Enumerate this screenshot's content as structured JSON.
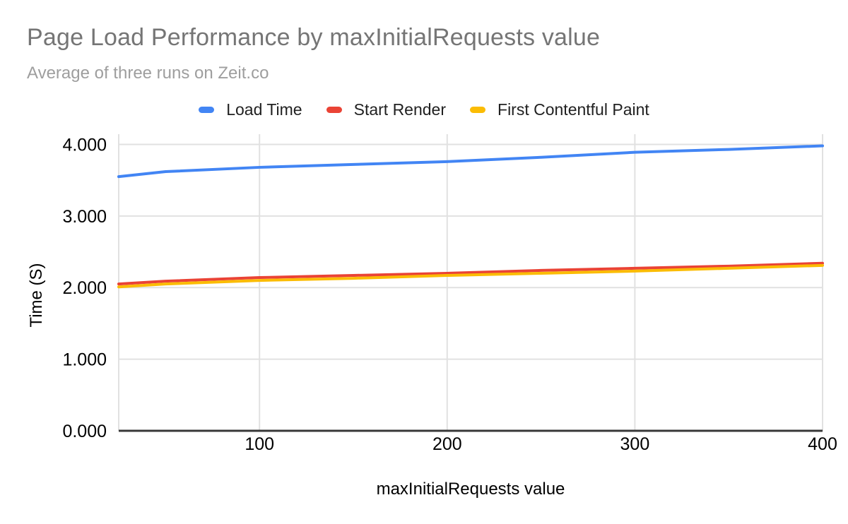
{
  "chart": {
    "title": "Page Load Performance by maxInitialRequests value",
    "subtitle": "Average of three runs on Zeit.co",
    "x_axis_title": "maxInitialRequests value",
    "y_axis_title": "Time (S)"
  },
  "chart_data": {
    "type": "line",
    "title": "Page Load Performance by maxInitialRequests value",
    "subtitle": "Average of three runs on Zeit.co",
    "xlabel": "maxInitialRequests value",
    "ylabel": "Time (S)",
    "x": [
      25,
      50,
      100,
      150,
      200,
      250,
      300,
      350,
      400
    ],
    "series": [
      {
        "name": "Load Time",
        "color": "#4285F4",
        "values": [
          3.55,
          3.62,
          3.68,
          3.72,
          3.76,
          3.82,
          3.89,
          3.93,
          3.98
        ]
      },
      {
        "name": "Start Render",
        "color": "#EA4335",
        "values": [
          2.05,
          2.09,
          2.14,
          2.17,
          2.2,
          2.24,
          2.27,
          2.3,
          2.34
        ]
      },
      {
        "name": "First Contentful Paint",
        "color": "#FBBC04",
        "values": [
          2.01,
          2.05,
          2.1,
          2.13,
          2.17,
          2.2,
          2.23,
          2.27,
          2.31
        ]
      }
    ],
    "x_ticks": [
      "100",
      "200",
      "300",
      "400"
    ],
    "y_ticks": [
      "0.000",
      "1.000",
      "2.000",
      "3.000",
      "4.000"
    ],
    "xlim": [
      25,
      400
    ],
    "ylim": [
      0,
      4.143
    ],
    "grid": true,
    "legend_position": "top",
    "colors": {
      "grid": "#e1e1e1",
      "axis_line": "#383838",
      "title": "#757575",
      "subtitle": "#9e9e9e",
      "tick_text": "#000000"
    }
  }
}
